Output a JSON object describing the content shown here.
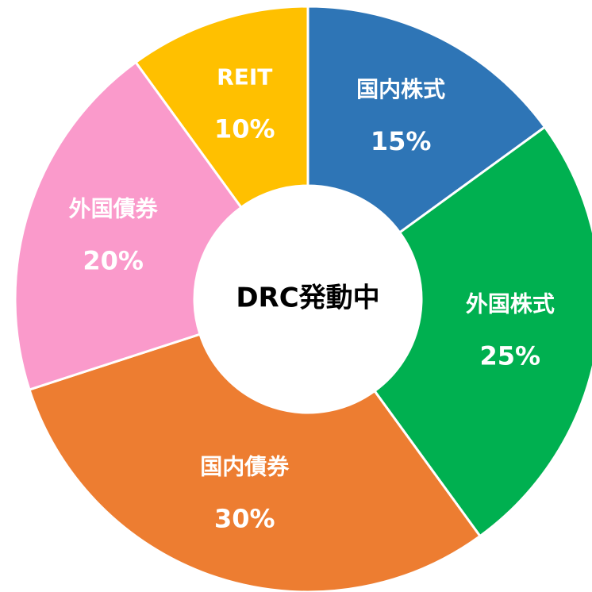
{
  "chart_data": {
    "type": "donut",
    "center_label": "DRC発動中",
    "categories": [
      "国内株式",
      "外国株式",
      "国内債券",
      "外国債券",
      "REIT"
    ],
    "values": [
      15,
      25,
      30,
      20,
      10
    ],
    "value_labels": [
      "15%",
      "25%",
      "30%",
      "20%",
      "10%"
    ],
    "colors": [
      "#2e75b6",
      "#00b050",
      "#ed7d31",
      "#fa9acb",
      "#ffc000"
    ]
  }
}
